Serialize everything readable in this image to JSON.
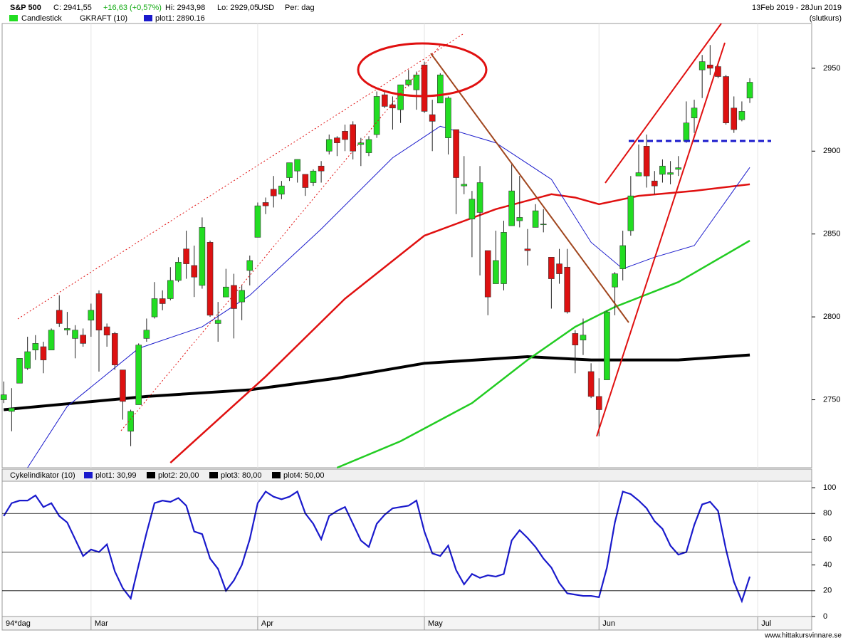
{
  "header": {
    "symbol": "S&P 500",
    "close": "C: 2941,55",
    "change": "+16,63 (+0,57%)",
    "high": "Hi: 2943,98",
    "low": "Lo: 2929,05",
    "currency": "USD",
    "period": "Per: dag",
    "range": "13Feb 2019 - 28Jun 2019",
    "basis": "(slutkurs)"
  },
  "legend": [
    "Candlestick",
    "GKRAFT (10)",
    "plot1: 2890.16"
  ],
  "footer": {
    "span": "94*dag",
    "site": "www.hittakursvinnare.se"
  },
  "chart_data": [
    {
      "type": "candlestick",
      "title": "S&P 500",
      "up_color": "#22dd22",
      "down_color": "#dd1111",
      "open": [
        2750,
        2743,
        2760,
        2769,
        2780,
        2782,
        2780,
        2804,
        2792,
        2787,
        2789,
        2798,
        2814,
        2794,
        2790,
        2768,
        2731,
        2747,
        2787,
        2800,
        2811,
        2811,
        2822,
        2841,
        2831,
        2819,
        2845,
        2796,
        2812,
        2819,
        2809,
        2828,
        2848,
        2869,
        2877,
        2874,
        2884,
        2888,
        2886,
        2881,
        2891,
        2900,
        2908,
        2912,
        2916,
        2904,
        2899,
        2910,
        2934,
        2928,
        2925,
        2940,
        2937,
        2952,
        2922,
        2929,
        2908,
        2913,
        2879,
        2859,
        2863,
        2840,
        2820,
        2820,
        2855,
        2858,
        2841,
        2854,
        2856,
        2836,
        2832,
        2830,
        2790,
        2786,
        2767,
        2752,
        2762,
        2818,
        2829,
        2852,
        2885,
        2903,
        2882,
        2886,
        2886,
        2889,
        2906,
        2920,
        2949,
        2952,
        2951,
        2945,
        2926,
        2919,
        2932
      ],
      "high": [
        2761,
        2757,
        2775,
        2788,
        2789,
        2785,
        2793,
        2813,
        2803,
        2795,
        2793,
        2808,
        2816,
        2796,
        2791,
        2768,
        2744,
        2784,
        2799,
        2821,
        2816,
        2830,
        2836,
        2852,
        2843,
        2860,
        2846,
        2809,
        2829,
        2826,
        2819,
        2837,
        2869,
        2872,
        2885,
        2882,
        2893,
        2895,
        2886,
        2889,
        2894,
        2910,
        2909,
        2916,
        2918,
        2908,
        2909,
        2936,
        2936,
        2933,
        2940,
        2949,
        2948,
        2954,
        2931,
        2947,
        2933,
        2913,
        2897,
        2876,
        2891,
        2840,
        2852,
        2858,
        2892,
        2885,
        2853,
        2868,
        2865,
        2836,
        2841,
        2841,
        2792,
        2799,
        2772,
        2763,
        2804,
        2827,
        2852,
        2885,
        2904,
        2910,
        2888,
        2895,
        2894,
        2897,
        2930,
        2931,
        2958,
        2964,
        2954,
        2946,
        2933,
        2930,
        2943.98
      ],
      "low": [
        2748,
        2731,
        2760,
        2768,
        2774,
        2766,
        2780,
        2794,
        2789,
        2775,
        2782,
        2788,
        2767,
        2782,
        2768,
        2738,
        2722,
        2747,
        2785,
        2799,
        2804,
        2810,
        2821,
        2823,
        2812,
        2817,
        2800,
        2785,
        2812,
        2787,
        2798,
        2819,
        2848,
        2862,
        2866,
        2871,
        2882,
        2881,
        2873,
        2879,
        2881,
        2898,
        2897,
        2900,
        2895,
        2891,
        2897,
        2908,
        2926,
        2913,
        2917,
        2939,
        2925,
        2923,
        2900,
        2929,
        2898,
        2862,
        2874,
        2836,
        2825,
        2801,
        2820,
        2816,
        2855,
        2854,
        2831,
        2854,
        2851,
        2805,
        2820,
        2802,
        2766,
        2777,
        2751,
        2728,
        2762,
        2801,
        2822,
        2849,
        2885,
        2878,
        2874,
        2881,
        2880,
        2885,
        2905,
        2911,
        2932,
        2946,
        2944,
        2916,
        2911,
        2918,
        2929.05
      ],
      "close": [
        2753,
        2745,
        2775,
        2779,
        2784,
        2774,
        2792,
        2796,
        2793,
        2792,
        2784,
        2804,
        2792,
        2789,
        2771,
        2749,
        2743,
        2783,
        2792,
        2811,
        2808,
        2822,
        2833,
        2832,
        2824,
        2854,
        2801,
        2798,
        2818,
        2805,
        2816,
        2834,
        2867,
        2867,
        2873,
        2879,
        2893,
        2895,
        2878,
        2888,
        2888,
        2907,
        2905,
        2907,
        2900,
        2905,
        2907,
        2933,
        2927,
        2926,
        2940,
        2943,
        2946,
        2924,
        2918,
        2946,
        2932,
        2884,
        2880,
        2871,
        2881,
        2812,
        2834,
        2851,
        2876,
        2860,
        2840,
        2864,
        2856,
        2823,
        2826,
        2803,
        2783,
        2789,
        2752,
        2744,
        2803,
        2826,
        2843,
        2873,
        2887,
        2885,
        2879,
        2891,
        2887,
        2890,
        2917,
        2926,
        2954,
        2950,
        2945,
        2917,
        2913,
        2924,
        2941.55
      ],
      "series": [
        {
          "color": "#000000",
          "x": [
            0,
            9,
            18,
            31,
            42,
            53,
            66,
            74,
            85,
            94
          ],
          "values": [
            2744,
            2748,
            2752,
            2756,
            2763,
            2772,
            2776,
            2774,
            2774,
            2777
          ]
        },
        {
          "color": "#22cc22",
          "x": [
            42,
            50,
            59,
            66,
            72,
            77,
            85,
            94
          ],
          "values": [
            2709,
            2725,
            2748,
            2774,
            2794,
            2806,
            2821,
            2846
          ]
        },
        {
          "color": "#e01010",
          "x": [
            21,
            27,
            33,
            43,
            53,
            62,
            69,
            72,
            75,
            80,
            87,
            94
          ],
          "values": [
            2712,
            2738,
            2764,
            2811,
            2849,
            2865,
            2874,
            2872,
            2868,
            2873,
            2876,
            2880
          ]
        },
        {
          "color": "#1a1acc",
          "x": [
            3,
            8,
            17,
            25,
            31,
            40,
            49,
            55,
            62,
            69,
            74,
            78,
            82,
            87,
            94
          ],
          "values": [
            2709,
            2746,
            2781,
            2794,
            2813,
            2853,
            2896,
            2915,
            2905,
            2883,
            2845,
            2829,
            2836,
            2843,
            2890.16
          ]
        }
      ],
      "xlim": [
        -0.2,
        101.8
      ],
      "xticks": [
        {
          "value": 11,
          "label": "Mar"
        },
        {
          "value": 32,
          "label": "Apr"
        },
        {
          "value": 53,
          "label": "May"
        },
        {
          "value": 75,
          "label": "Jun"
        },
        {
          "value": 95,
          "label": "Jul"
        }
      ],
      "ylim": [
        2709,
        2977
      ],
      "yticks": [
        2750,
        2800,
        2850,
        2900,
        2950
      ]
    },
    {
      "type": "line",
      "title": "Cykelindikator (10)",
      "series": [
        {
          "name": "plot1: 30,99",
          "color": "#1a1acc",
          "values": [
            78,
            88,
            90,
            90,
            94,
            85,
            88,
            78,
            73,
            60,
            47,
            52,
            50,
            56,
            35,
            22,
            14,
            40,
            65,
            88,
            90,
            89,
            92,
            86,
            66,
            64,
            45,
            37,
            20,
            28,
            40,
            60,
            88,
            97,
            93,
            91,
            93,
            97,
            80,
            72,
            60,
            78,
            82,
            85,
            72,
            59,
            54,
            72,
            79,
            84,
            85,
            86,
            90,
            66,
            49,
            47,
            55,
            36,
            25,
            33,
            30,
            32,
            31,
            33,
            59,
            67,
            61,
            54,
            45,
            38,
            26,
            18,
            17,
            16,
            16,
            15,
            38,
            73,
            97,
            95,
            90,
            84,
            74,
            68,
            55,
            48,
            50,
            71,
            87,
            89,
            82,
            52,
            27,
            12,
            30.99
          ]
        }
      ],
      "levels": [
        {
          "name": "plot2: 20,00",
          "color": "#000000",
          "value": 20
        },
        {
          "name": "plot3: 80,00",
          "color": "#000000",
          "value": 80
        },
        {
          "name": "plot4: 50,00",
          "color": "#000000",
          "value": 50
        }
      ],
      "ylim": [
        0,
        105
      ],
      "yticks": [
        0,
        20,
        40,
        60,
        80,
        100
      ]
    }
  ]
}
